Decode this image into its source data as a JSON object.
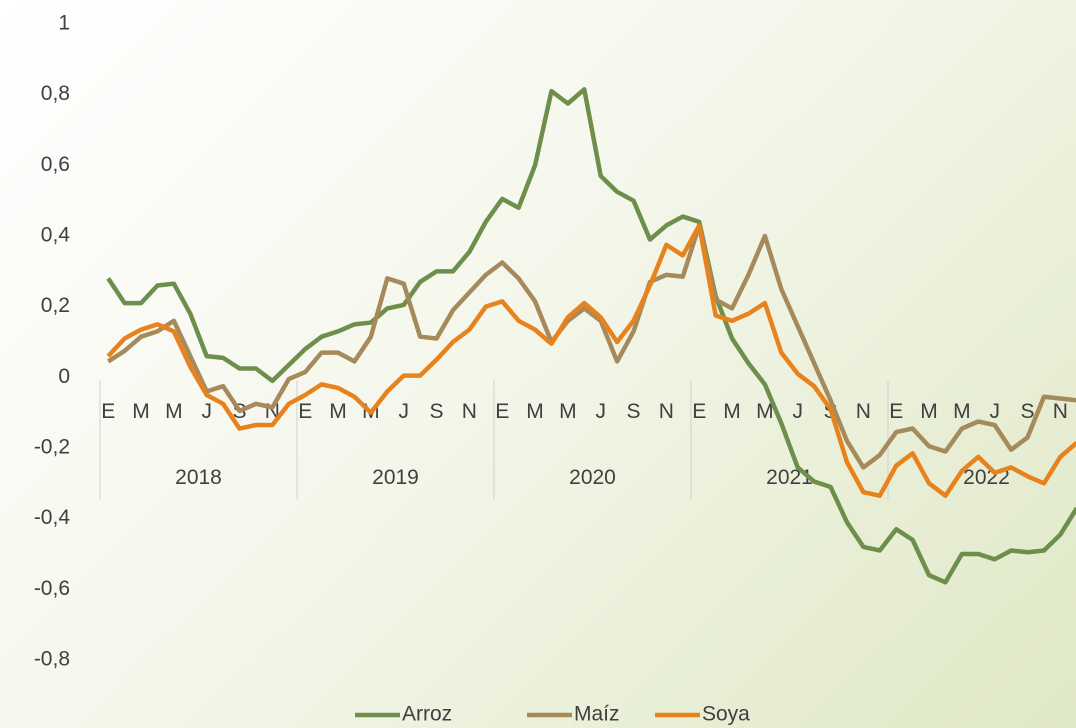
{
  "chart_data": {
    "type": "line",
    "categories": [
      "E",
      null,
      "M",
      null,
      "M",
      null,
      "J",
      null,
      "S",
      null,
      "N",
      null,
      "E",
      null,
      "M",
      null,
      "M",
      null,
      "J",
      null,
      "S",
      null,
      "N",
      null,
      "E",
      null,
      "M",
      null,
      "M",
      null,
      "J",
      null,
      "S",
      null,
      "N",
      null,
      "E",
      null,
      "M",
      null,
      "M",
      null,
      "J",
      null,
      "S",
      null,
      "N",
      null,
      "E",
      null,
      "M",
      null,
      "M",
      null,
      "J",
      null,
      "S",
      null,
      "N",
      null
    ],
    "year_groups": [
      "2018",
      "2019",
      "2020",
      "2021",
      "2022"
    ],
    "series": [
      {
        "name": "Arroz",
        "color": "#6e8f4c",
        "values": [
          0.28,
          0.21,
          0.21,
          0.26,
          0.265,
          0.18,
          0.06,
          0.055,
          0.025,
          0.025,
          -0.01,
          0.035,
          0.08,
          0.115,
          0.13,
          0.15,
          0.155,
          0.195,
          0.205,
          0.27,
          0.3,
          0.3,
          0.355,
          0.44,
          0.505,
          0.48,
          0.6,
          0.81,
          0.775,
          0.815,
          0.57,
          0.525,
          0.5,
          0.39,
          0.43,
          0.455,
          0.44,
          0.23,
          0.11,
          0.04,
          -0.02,
          -0.13,
          -0.255,
          -0.295,
          -0.31,
          -0.41,
          -0.48,
          -0.49,
          -0.43,
          -0.46,
          -0.56,
          -0.58,
          -0.5,
          -0.5,
          -0.515,
          -0.49,
          -0.495,
          -0.49,
          -0.445,
          -0.37
        ]
      },
      {
        "name": "Maíz",
        "color": "#a68a5b",
        "values": [
          0.045,
          0.075,
          0.115,
          0.13,
          0.16,
          0.06,
          -0.04,
          -0.025,
          -0.095,
          -0.075,
          -0.085,
          -0.005,
          0.015,
          0.07,
          0.07,
          0.045,
          0.115,
          0.28,
          0.265,
          0.115,
          0.11,
          0.19,
          0.24,
          0.29,
          0.325,
          0.28,
          0.215,
          0.1,
          0.16,
          0.195,
          0.16,
          0.045,
          0.13,
          0.27,
          0.29,
          0.285,
          0.43,
          0.22,
          0.195,
          0.29,
          0.4,
          0.25,
          0.145,
          0.04,
          -0.065,
          -0.18,
          -0.255,
          -0.22,
          -0.155,
          -0.145,
          -0.195,
          -0.21,
          -0.145,
          -0.125,
          -0.135,
          -0.205,
          -0.17,
          -0.055,
          -0.06,
          -0.065
        ]
      },
      {
        "name": "Soya",
        "color": "#e8821d",
        "values": [
          0.06,
          0.11,
          0.135,
          0.15,
          0.13,
          0.03,
          -0.05,
          -0.075,
          -0.145,
          -0.135,
          -0.135,
          -0.075,
          -0.05,
          -0.02,
          -0.03,
          -0.055,
          -0.1,
          -0.04,
          0.005,
          0.005,
          0.05,
          0.1,
          0.135,
          0.2,
          0.215,
          0.16,
          0.135,
          0.095,
          0.17,
          0.21,
          0.17,
          0.1,
          0.16,
          0.26,
          0.375,
          0.345,
          0.43,
          0.175,
          0.16,
          0.18,
          0.21,
          0.07,
          0.01,
          -0.025,
          -0.09,
          -0.24,
          -0.325,
          -0.335,
          -0.25,
          -0.215,
          -0.3,
          -0.335,
          -0.265,
          -0.225,
          -0.27,
          -0.255,
          -0.28,
          -0.3,
          -0.225,
          -0.185
        ]
      }
    ],
    "ylim": [
      -0.8,
      1
    ],
    "yticks": [
      1,
      {
        "value": 0.8,
        "label": "0,8"
      },
      {
        "value": 0.6,
        "label": "0,6"
      },
      {
        "value": 0.4,
        "label": "0,4"
      },
      {
        "value": 0.2,
        "label": "0,2"
      },
      0,
      {
        "value": -0.2,
        "label": "-0,2"
      },
      {
        "value": -0.4,
        "label": "-0,4"
      },
      {
        "value": -0.6,
        "label": "-0,6"
      },
      {
        "value": -0.8,
        "label": "-0,8"
      }
    ],
    "grid": false,
    "legend": "bottom"
  }
}
